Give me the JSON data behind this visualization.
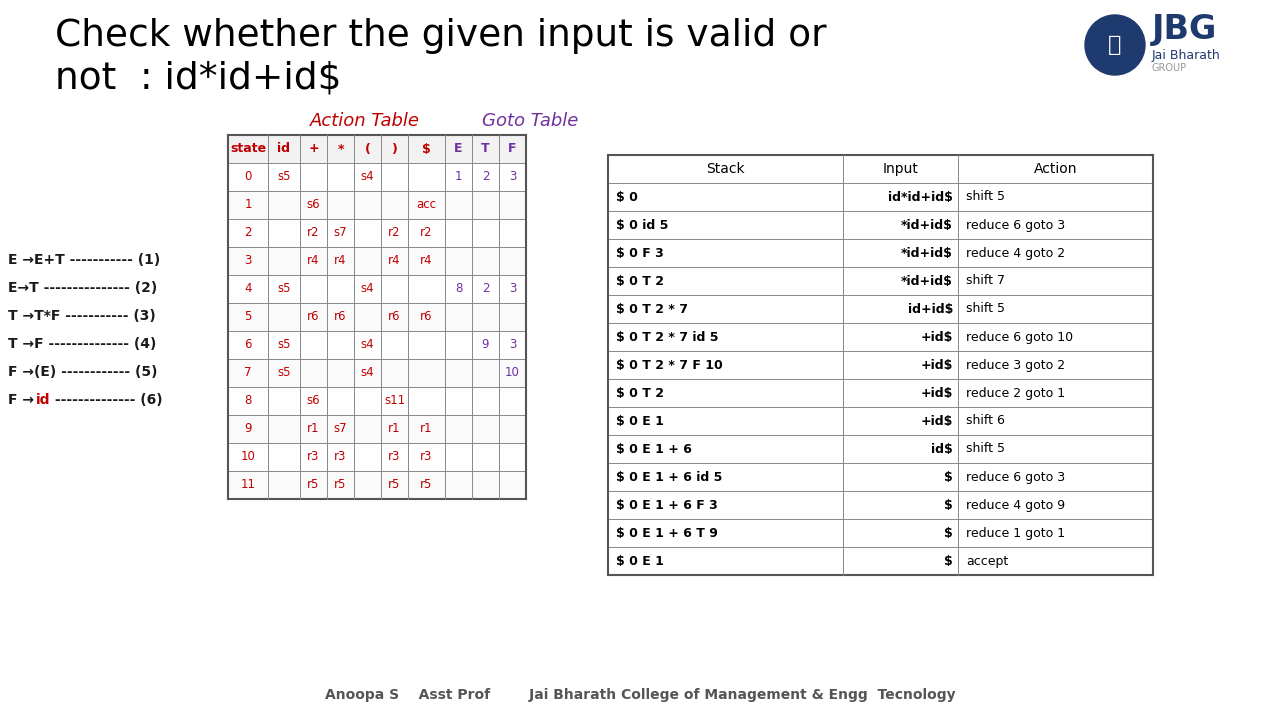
{
  "title_line1": "Check whether the given input is valid or",
  "title_line2": "not  : id*id+id$",
  "bg_color": "#ffffff",
  "action_table_label": "Action Table",
  "goto_table_label": "Goto Table",
  "grammar_rules": [
    [
      "E →E+T ----------- (1)",
      false
    ],
    [
      "E→T --------------- (2)",
      false
    ],
    [
      "T →T*F ----------- (3)",
      false
    ],
    [
      "T →F -------------- (4)",
      false
    ],
    [
      "F →(E) ------------ (5)",
      false
    ],
    [
      "F →id -------------- (6)",
      true
    ]
  ],
  "slr_headers": [
    "state",
    "id",
    "+",
    "*",
    "(",
    ")",
    "$",
    "E",
    "T",
    "F"
  ],
  "slr_data": [
    [
      "0",
      "s5",
      "",
      "",
      "s4",
      "",
      "",
      "1",
      "2",
      "3"
    ],
    [
      "1",
      "",
      "s6",
      "",
      "",
      "",
      "acc",
      "",
      "",
      ""
    ],
    [
      "2",
      "",
      "r2",
      "s7",
      "",
      "r2",
      "r2",
      "",
      "",
      ""
    ],
    [
      "3",
      "",
      "r4",
      "r4",
      "",
      "r4",
      "r4",
      "",
      "",
      ""
    ],
    [
      "4",
      "s5",
      "",
      "",
      "s4",
      "",
      "",
      "8",
      "2",
      "3"
    ],
    [
      "5",
      "",
      "r6",
      "r6",
      "",
      "r6",
      "r6",
      "",
      "",
      ""
    ],
    [
      "6",
      "s5",
      "",
      "",
      "s4",
      "",
      "",
      "",
      "9",
      "3"
    ],
    [
      "7",
      "s5",
      "",
      "",
      "s4",
      "",
      "",
      "",
      "",
      "10"
    ],
    [
      "8",
      "",
      "s6",
      "",
      "",
      "s11",
      "",
      "",
      "",
      ""
    ],
    [
      "9",
      "",
      "r1",
      "s7",
      "",
      "r1",
      "r1",
      "",
      "",
      ""
    ],
    [
      "10",
      "",
      "r3",
      "r3",
      "",
      "r3",
      "r3",
      "",
      "",
      ""
    ],
    [
      "11",
      "",
      "r5",
      "r5",
      "",
      "r5",
      "r5",
      "",
      "",
      ""
    ]
  ],
  "trace_headers": [
    "Stack",
    "Input",
    "Action"
  ],
  "trace_data": [
    [
      "$ 0",
      "id*id+id$",
      "shift 5"
    ],
    [
      "$ 0 id 5",
      "*id+id$",
      "reduce 6 goto 3"
    ],
    [
      "$ 0 F 3",
      "*id+id$",
      "reduce 4 goto 2"
    ],
    [
      "$ 0 T 2",
      "*id+id$",
      "shift 7"
    ],
    [
      "$ 0 T 2 * 7",
      "id+id$",
      "shift 5"
    ],
    [
      "$ 0 T 2 * 7 id 5",
      "+id$",
      "reduce 6 goto 10"
    ],
    [
      "$ 0 T 2 * 7 F 10",
      "+id$",
      "reduce 3 goto 2"
    ],
    [
      "$ 0 T 2",
      "+id$",
      "reduce 2 goto 1"
    ],
    [
      "$ 0 E 1",
      "+id$",
      "shift 6"
    ],
    [
      "$ 0 E 1 + 6",
      "id$",
      "shift 5"
    ],
    [
      "$ 0 E 1 + 6 id 5",
      "$",
      "reduce 6 goto 3"
    ],
    [
      "$ 0 E 1 + 6 F 3",
      "$",
      "reduce 4 goto 9"
    ],
    [
      "$ 0 E 1 + 6 T 9",
      "$",
      "reduce 1 goto 1"
    ],
    [
      "$ 0 E 1",
      "$",
      "accept"
    ]
  ],
  "footer_text": "Anoopa S    Asst Prof        Jai Bharath College of Management & Engg  Tecnology",
  "red_color": "#c00000",
  "purple_color": "#7030a0",
  "dark_color": "#1a1a1a",
  "table_border": "#555555",
  "table_line_color": "#888888"
}
